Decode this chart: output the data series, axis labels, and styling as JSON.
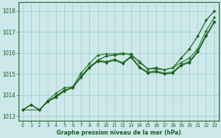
{
  "title": "Graphe pression niveau de la mer (hPa)",
  "background_color": "#cce8ea",
  "grid_color": "#aacccc",
  "line_color1": "#1a5c1a",
  "line_color2": "#2d7a2d",
  "line_color3": "#2d7a2d",
  "line_color4": "#1a5c1a",
  "xlim": [
    -0.5,
    23.5
  ],
  "ylim": [
    1012.8,
    1018.4
  ],
  "yticks": [
    1013,
    1014,
    1015,
    1016,
    1017,
    1018
  ],
  "xticks": [
    0,
    1,
    2,
    3,
    4,
    5,
    6,
    7,
    8,
    9,
    10,
    11,
    12,
    13,
    14,
    15,
    16,
    17,
    18,
    19,
    20,
    21,
    22,
    23
  ],
  "series1_x": [
    0,
    1,
    2,
    3,
    4,
    5,
    6,
    7,
    8,
    9,
    10,
    11,
    12,
    13,
    14,
    15,
    16,
    17,
    18,
    19,
    20,
    21,
    22,
    23
  ],
  "series1_y": [
    1013.3,
    1013.55,
    1013.3,
    1013.7,
    1013.9,
    1014.2,
    1014.4,
    1014.85,
    1015.3,
    1015.65,
    1015.85,
    1015.9,
    1015.95,
    1015.95,
    1015.55,
    1015.25,
    1015.3,
    1015.2,
    1015.3,
    1015.75,
    1016.2,
    1016.8,
    1017.55,
    1018.0
  ],
  "series2_x": [
    0,
    2,
    3,
    4,
    5,
    6,
    7,
    8,
    9,
    10,
    11,
    12,
    13,
    14,
    15,
    16,
    17,
    18,
    19,
    20,
    21,
    22,
    23
  ],
  "series2_y": [
    1013.3,
    1013.3,
    1013.75,
    1014.1,
    1014.35,
    1014.4,
    1015.05,
    1015.5,
    1015.9,
    1015.95,
    1015.95,
    1016.0,
    1015.9,
    1015.6,
    1015.25,
    1015.25,
    1015.2,
    1015.3,
    1015.55,
    1015.75,
    1016.2,
    1017.05,
    1017.7
  ],
  "series3_x": [
    0,
    1,
    2,
    3,
    4,
    5,
    6,
    7,
    8,
    9,
    10,
    11,
    12,
    13,
    14,
    15,
    16,
    17,
    18,
    19,
    20,
    21,
    22,
    23
  ],
  "series3_y": [
    1013.3,
    1013.55,
    1013.3,
    1013.7,
    1013.95,
    1014.25,
    1014.35,
    1014.9,
    1015.35,
    1015.65,
    1015.6,
    1015.7,
    1015.55,
    1015.85,
    1015.35,
    1015.1,
    1015.15,
    1015.05,
    1015.1,
    1015.45,
    1015.6,
    1016.1,
    1016.85,
    1017.5
  ],
  "series4_x": [
    0,
    1,
    2,
    3,
    4,
    5,
    6,
    7,
    8,
    9,
    10,
    11,
    12,
    13,
    14,
    15,
    16,
    17,
    18,
    19,
    20,
    21,
    22,
    23
  ],
  "series4_y": [
    1013.3,
    1013.55,
    1013.3,
    1013.7,
    1013.95,
    1014.2,
    1014.35,
    1014.85,
    1015.3,
    1015.6,
    1015.55,
    1015.65,
    1015.5,
    1015.8,
    1015.3,
    1015.05,
    1015.1,
    1015.0,
    1015.05,
    1015.4,
    1015.55,
    1016.05,
    1016.8,
    1017.45
  ]
}
